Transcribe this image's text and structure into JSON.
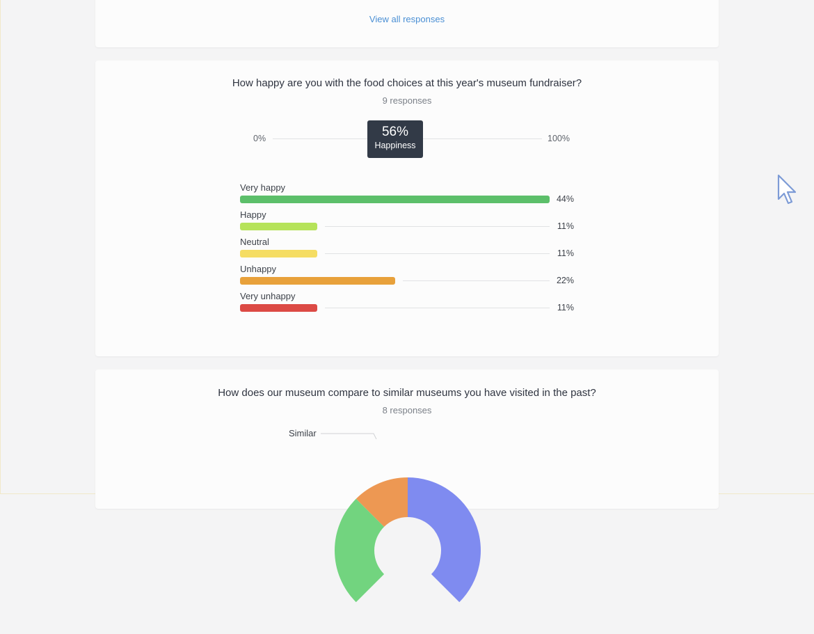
{
  "top_card": {
    "view_all_label": "View all responses"
  },
  "happiness_question": {
    "title": "How happy are you with the food choices at this year's museum fundraiser?",
    "responses": "9 responses",
    "scale_min": "0%",
    "scale_max": "100%",
    "score": "56%",
    "score_value": 56,
    "score_label": "Happiness",
    "bars": [
      {
        "label": "Very happy",
        "pct": "44%",
        "value": 44,
        "color": "#5cbf6a"
      },
      {
        "label": "Happy",
        "pct": "11%",
        "value": 11,
        "color": "#b6e35a"
      },
      {
        "label": "Neutral",
        "pct": "11%",
        "value": 11,
        "color": "#f5dd63"
      },
      {
        "label": "Unhappy",
        "pct": "22%",
        "value": 22,
        "color": "#e8a13b"
      },
      {
        "label": "Very unhappy",
        "pct": "11%",
        "value": 11,
        "color": "#dc4a45"
      }
    ]
  },
  "compare_question": {
    "title": "How does our museum compare to similar museums you have visited in the past?",
    "responses": "8 responses",
    "chart_data": {
      "type": "pie",
      "labels": [
        "Similar"
      ],
      "slices": [
        {
          "label": "Similar",
          "color": "#ed9853",
          "start": -45,
          "end": 0
        },
        {
          "label": "",
          "color": "#7f8bf0",
          "start": 0,
          "end": 135
        },
        {
          "label": "",
          "color": "#72d47f",
          "start": 225,
          "end": 315
        }
      ]
    }
  },
  "colors": {
    "link": "#4a8fd4",
    "marker_bg": "#323a47"
  }
}
